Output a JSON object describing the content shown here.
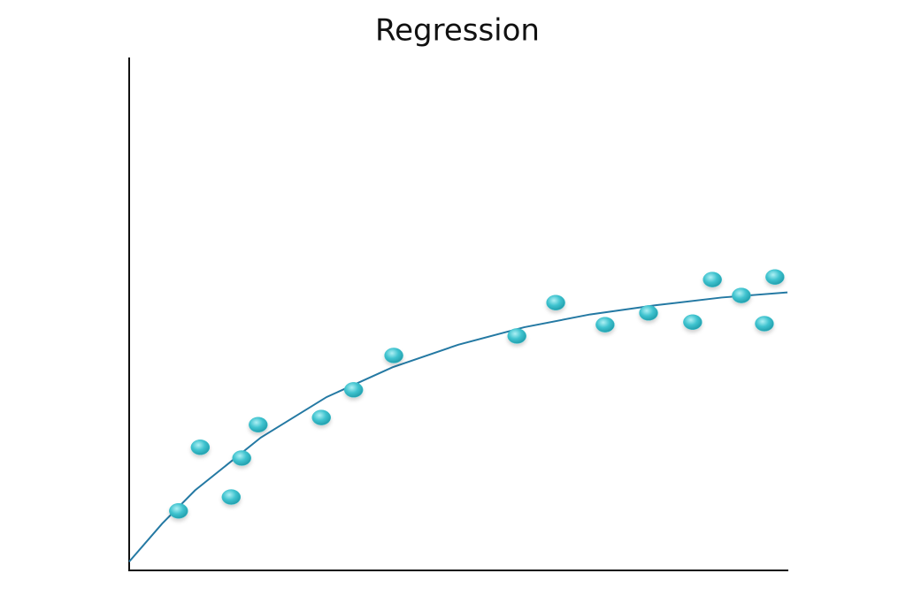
{
  "chart_data": {
    "type": "scatter",
    "title": "Regression",
    "x": [
      7.5,
      10.8,
      15.5,
      17.1,
      19.6,
      29.2,
      34.1,
      40.2,
      58.9,
      64.8,
      72.3,
      78.9,
      85.6,
      88.6,
      93.0,
      96.5,
      98.1
    ],
    "values": [
      11.6,
      24.0,
      14.3,
      21.9,
      28.4,
      29.8,
      35.2,
      41.9,
      45.7,
      52.2,
      47.9,
      50.2,
      48.4,
      56.7,
      53.6,
      48.1,
      57.2
    ],
    "color": "#3fc3cf",
    "fit": {
      "color": "#2479a3",
      "x": [
        0,
        5,
        10,
        20,
        30,
        40,
        50,
        60,
        70,
        80,
        90,
        100
      ],
      "values": [
        1.7,
        9.1,
        15.6,
        25.9,
        33.8,
        39.6,
        44.0,
        47.4,
        49.9,
        51.7,
        53.2,
        54.2
      ]
    },
    "xlim": [
      0,
      100
    ],
    "ylim": [
      0,
      100
    ]
  }
}
